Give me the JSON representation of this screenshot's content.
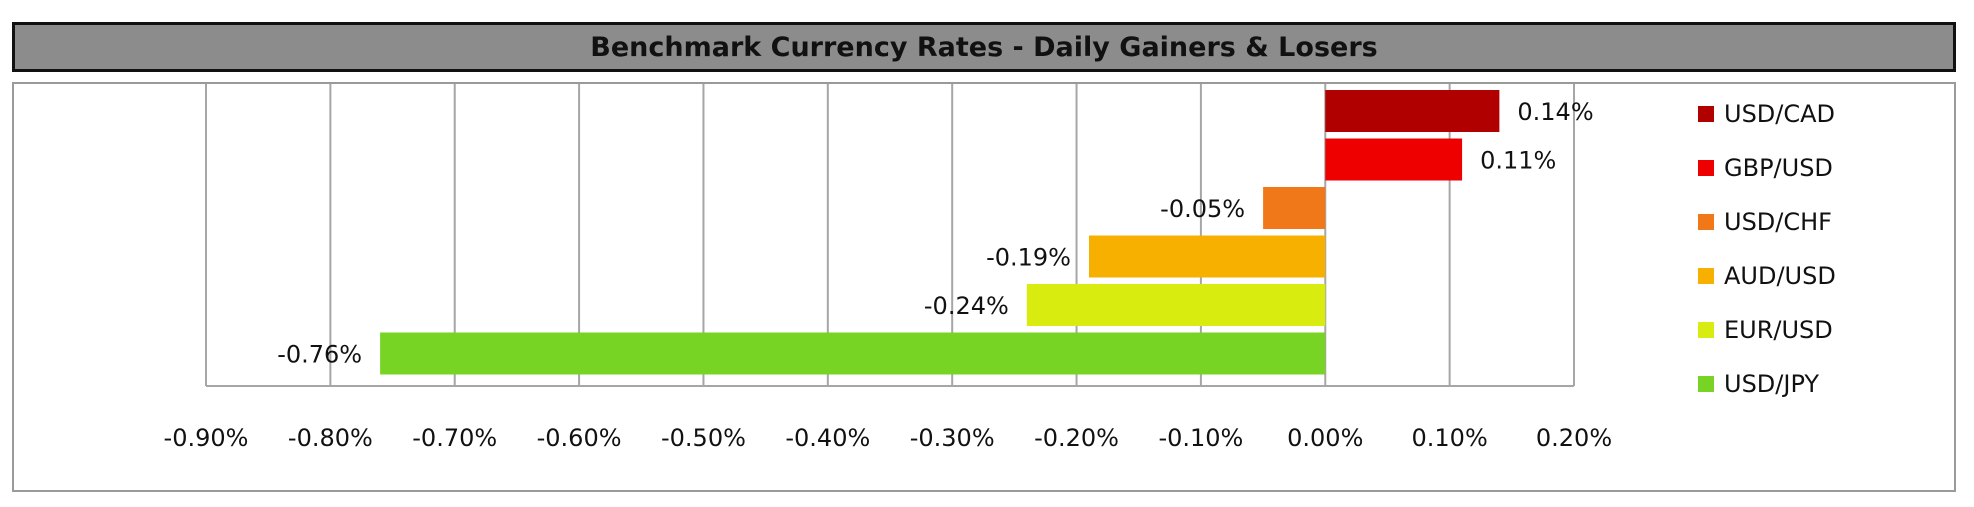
{
  "chart_data": {
    "type": "bar",
    "orientation": "horizontal",
    "title": "Benchmark Currency Rates - Daily Gainers & Losers",
    "categories": [
      "USD/CAD",
      "GBP/USD",
      "USD/CHF",
      "AUD/USD",
      "EUR/USD",
      "USD/JPY"
    ],
    "values": [
      0.14,
      0.11,
      -0.05,
      -0.19,
      -0.24,
      -0.76
    ],
    "data_labels": [
      "0.14%",
      "0.11%",
      "-0.05%",
      "-0.19%",
      "-0.24%",
      "-0.76%"
    ],
    "colors": [
      "#b00000",
      "#ee0000",
      "#f07818",
      "#f8b000",
      "#d8ec10",
      "#78d424"
    ],
    "xlim": [
      -0.9,
      0.2
    ],
    "x_ticks": [
      -0.9,
      -0.8,
      -0.7,
      -0.6,
      -0.5,
      -0.4,
      -0.3,
      -0.2,
      -0.1,
      0.0,
      0.1,
      0.2
    ],
    "x_tick_labels": [
      "-0.90%",
      "-0.80%",
      "-0.70%",
      "-0.60%",
      "-0.50%",
      "-0.40%",
      "-0.30%",
      "-0.20%",
      "-0.10%",
      "0.00%",
      "0.10%",
      "0.20%"
    ],
    "grid": true,
    "legend_position": "right",
    "xlabel": "",
    "ylabel": ""
  }
}
